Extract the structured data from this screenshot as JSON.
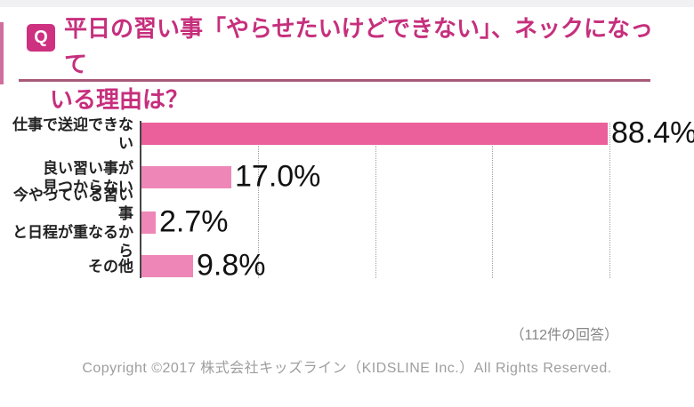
{
  "header": {
    "q_icon": "Q",
    "title_line1": "平日の習い事「やらせたいけどできない」、ネックになって",
    "title_line2": "いる理由は？"
  },
  "chart_data": {
    "type": "bar",
    "orientation": "horizontal",
    "title": "平日の習い事「やらせたいけどできない」、ネックになっている理由は？",
    "categories": [
      "仕事で送迎できない",
      "良い習い事が\n見つからない",
      "今やっている習い事\nと日程が重なるから",
      "その他"
    ],
    "values": [
      88.4,
      17.0,
      2.7,
      9.8
    ],
    "value_labels": [
      "88.4%",
      "17.0%",
      "2.7%",
      "9.8%"
    ],
    "unit": "%",
    "xlim": [
      0,
      100
    ],
    "grid": "vertical-dotted-unlabeled",
    "legend": "none",
    "bar_colors": [
      "#eb5f9a",
      "#ee87b7",
      "#ee87b7",
      "#ee87b7"
    ],
    "annotation": "（112件の回答）"
  },
  "footer": {
    "copyright": "Copyright ©2017 株式会社キッズライン（KIDSLINE Inc.）All Rights Reserved."
  },
  "colors": {
    "title_pink": "#c62f7d",
    "q_badge_bg": "#cd3180",
    "divider": "#a75a78",
    "bar_primary": "#eb5f9a",
    "bar_secondary": "#ee87b7",
    "axis_gray": "#474747",
    "note_gray": "#868686",
    "copyright_gray": "#9e9e9e"
  }
}
